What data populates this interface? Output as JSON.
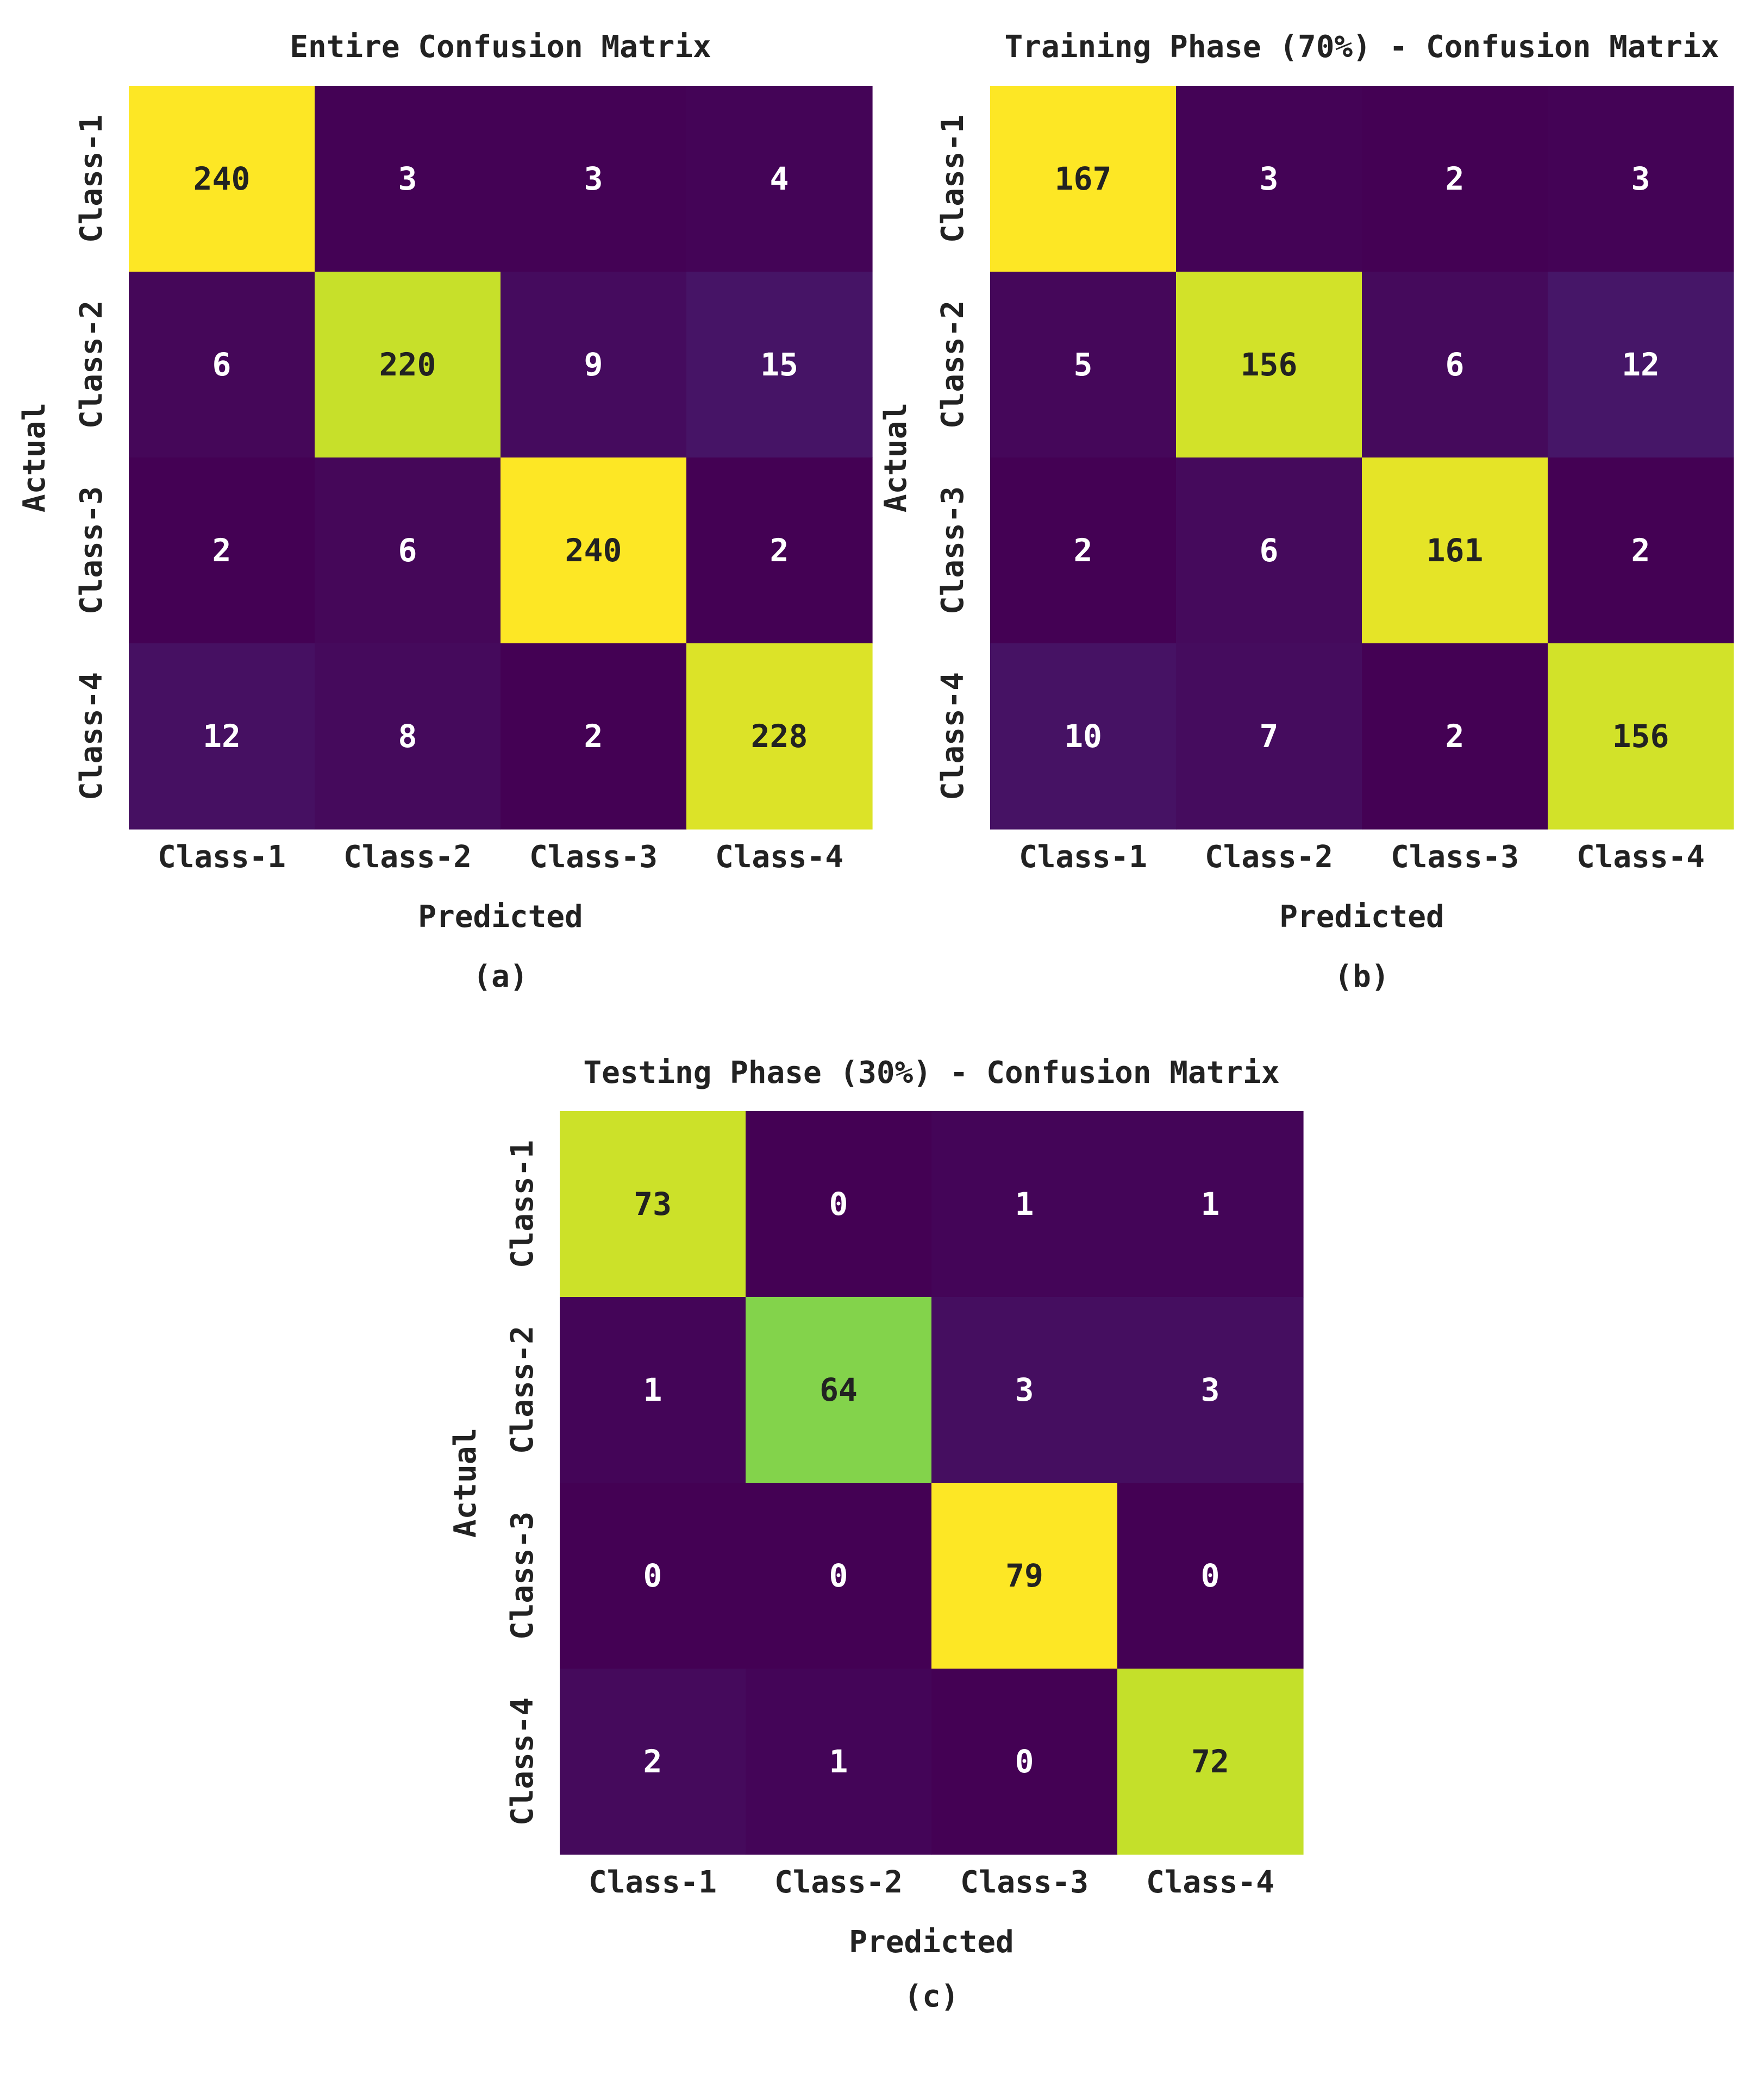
{
  "colors": {
    "scale": [
      "#440154",
      "#482878",
      "#3e4989",
      "#31688e",
      "#26828e",
      "#1f9e89",
      "#35b779",
      "#6ece58",
      "#b5de2b",
      "#fde725"
    ],
    "text_dark": "#222222",
    "text_light": "#ffffff"
  },
  "chart_data": [
    {
      "type": "heatmap",
      "title": "Entire Confusion Matrix",
      "panel_label": "(a)",
      "xlabel": "Predicted",
      "ylabel": "Actual",
      "x_categories": [
        "Class-1",
        "Class-2",
        "Class-3",
        "Class-4"
      ],
      "y_categories": [
        "Class-1",
        "Class-2",
        "Class-3",
        "Class-4"
      ],
      "values": [
        [
          240,
          3,
          3,
          4
        ],
        [
          6,
          220,
          9,
          15
        ],
        [
          2,
          6,
          240,
          2
        ],
        [
          12,
          8,
          2,
          228
        ]
      ],
      "colormap": "viridis",
      "colorbar": false
    },
    {
      "type": "heatmap",
      "title": "Training Phase (70%) - Confusion Matrix",
      "panel_label": "(b)",
      "xlabel": "Predicted",
      "ylabel": "Actual",
      "x_categories": [
        "Class-1",
        "Class-2",
        "Class-3",
        "Class-4"
      ],
      "y_categories": [
        "Class-1",
        "Class-2",
        "Class-3",
        "Class-4"
      ],
      "values": [
        [
          167,
          3,
          2,
          3
        ],
        [
          5,
          156,
          6,
          12
        ],
        [
          2,
          6,
          161,
          2
        ],
        [
          10,
          7,
          2,
          156
        ]
      ],
      "colormap": "viridis",
      "colorbar": false
    },
    {
      "type": "heatmap",
      "title": "Testing Phase (30%) - Confusion Matrix",
      "panel_label": "(c)",
      "xlabel": "Predicted",
      "ylabel": "Actual",
      "x_categories": [
        "Class-1",
        "Class-2",
        "Class-3",
        "Class-4"
      ],
      "y_categories": [
        "Class-1",
        "Class-2",
        "Class-3",
        "Class-4"
      ],
      "values": [
        [
          73,
          0,
          1,
          1
        ],
        [
          1,
          64,
          3,
          3
        ],
        [
          0,
          0,
          79,
          0
        ],
        [
          2,
          1,
          0,
          72
        ]
      ],
      "colormap": "viridis",
      "colorbar": false
    }
  ]
}
